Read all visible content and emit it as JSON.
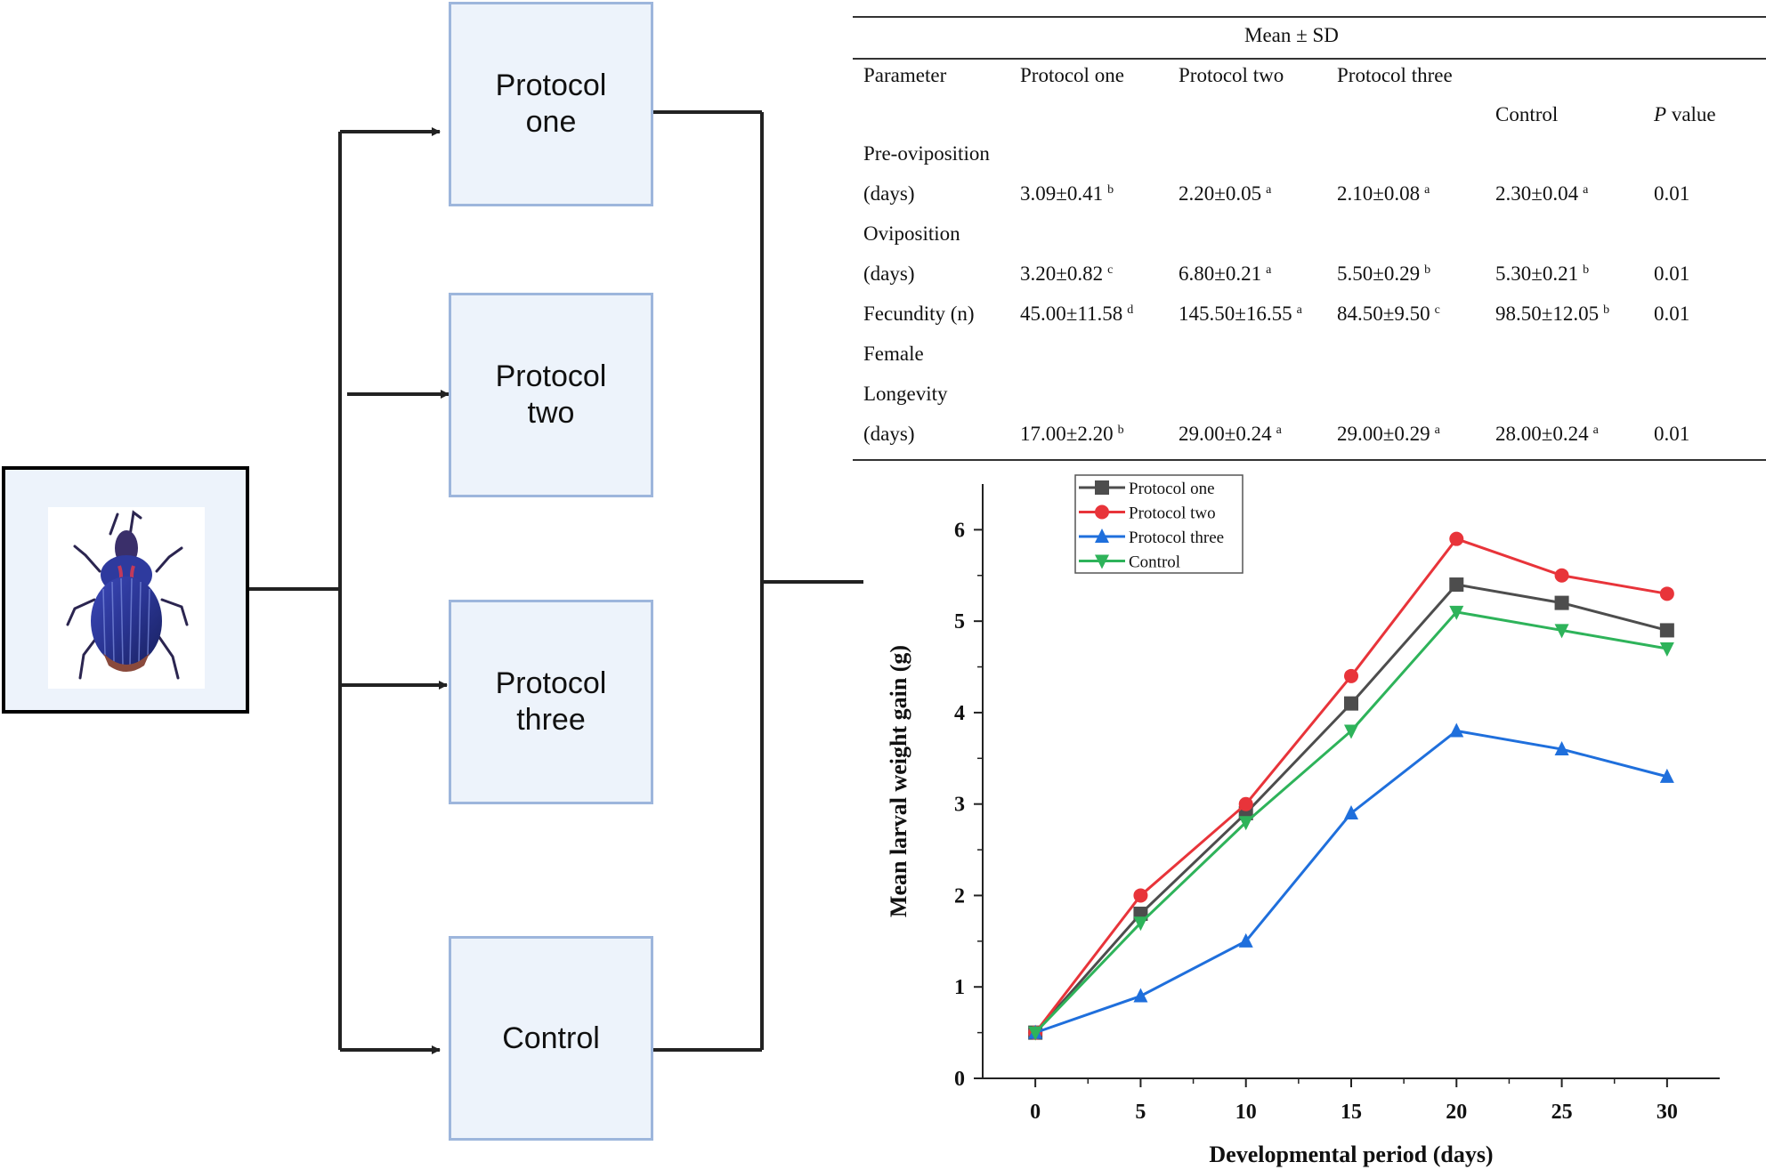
{
  "flow": {
    "boxes": [
      {
        "id": "p1",
        "lines": [
          "Protocol",
          "one"
        ]
      },
      {
        "id": "p2",
        "lines": [
          "Protocol",
          "two"
        ]
      },
      {
        "id": "p3",
        "lines": [
          "Protocol",
          "three"
        ]
      },
      {
        "id": "ctrl",
        "lines": [
          "Control"
        ]
      }
    ],
    "source_icon": "blue-weevil-beetle"
  },
  "table": {
    "group_header": "Mean ± SD",
    "headers": {
      "parameter": "Parameter",
      "p1": "Protocol one",
      "p2": "Protocol two",
      "p3": "Protocol three",
      "control": "Control",
      "p": "P",
      "p_suffix": "value"
    },
    "rows": [
      {
        "label": "Pre-oviposition",
        "cells": null
      },
      {
        "label": "(days)",
        "cells": [
          [
            "3.09±0.41",
            "b"
          ],
          [
            "2.20±0.05",
            "a"
          ],
          [
            "2.10±0.08",
            "a"
          ],
          [
            "2.30±0.04",
            "a"
          ]
        ],
        "p": "0.01"
      },
      {
        "label": "Oviposition",
        "cells": null
      },
      {
        "label": "(days)",
        "cells": [
          [
            "3.20±0.82",
            "c"
          ],
          [
            "6.80±0.21",
            "a"
          ],
          [
            "5.50±0.29",
            "b"
          ],
          [
            "5.30±0.21",
            "b"
          ]
        ],
        "p": "0.01"
      },
      {
        "label": "Fecundity (n)",
        "cells": [
          [
            "45.00±11.58",
            "d"
          ],
          [
            "145.50±16.55",
            "a"
          ],
          [
            "84.50±9.50",
            "c"
          ],
          [
            "98.50±12.05",
            "b"
          ]
        ],
        "p": "0.01"
      },
      {
        "label": "Female",
        "cells": null
      },
      {
        "label": "Longevity",
        "cells": null
      },
      {
        "label": "(days)",
        "cells": [
          [
            "17.00±2.20",
            "b"
          ],
          [
            "29.00±0.24",
            "a"
          ],
          [
            "29.00±0.29",
            "a"
          ],
          [
            "28.00±0.24",
            "a"
          ]
        ],
        "p": "0.01"
      }
    ]
  },
  "chart_data": {
    "type": "line",
    "title": "",
    "xlabel": "Developmental period (days)",
    "ylabel": "Mean larval weight gain (g)",
    "x": [
      0,
      5,
      10,
      15,
      20,
      25,
      30
    ],
    "xlim": [
      -2.5,
      32.5
    ],
    "ylim": [
      0,
      6.5
    ],
    "xticks": [
      0,
      5,
      10,
      15,
      20,
      25,
      30
    ],
    "yticks": [
      0,
      1,
      2,
      3,
      4,
      5,
      6
    ],
    "legend_position": "top-left",
    "series": [
      {
        "name": "Protocol one",
        "color": "#4d4d4d",
        "marker": "square",
        "values": [
          0.5,
          1.8,
          2.9,
          4.1,
          5.4,
          5.2,
          4.9
        ]
      },
      {
        "name": "Protocol two",
        "color": "#e8343a",
        "marker": "circle",
        "values": [
          0.5,
          2.0,
          3.0,
          4.4,
          5.9,
          5.5,
          5.3
        ]
      },
      {
        "name": "Protocol three",
        "color": "#1f6fdc",
        "marker": "triangle-up",
        "values": [
          0.5,
          0.9,
          1.5,
          2.9,
          3.8,
          3.6,
          3.3
        ]
      },
      {
        "name": "Control",
        "color": "#2eb35a",
        "marker": "triangle-down",
        "values": [
          0.5,
          1.7,
          2.8,
          3.8,
          5.1,
          4.9,
          4.7
        ]
      }
    ]
  }
}
